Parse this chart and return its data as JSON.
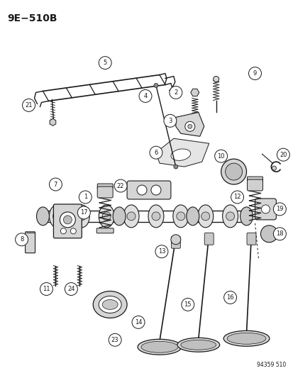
{
  "title": "9E−510B",
  "footer": "94359 510",
  "background_color": "#ffffff",
  "line_color": "#1a1a1a",
  "fig_width": 4.14,
  "fig_height": 5.33,
  "dpi": 100
}
